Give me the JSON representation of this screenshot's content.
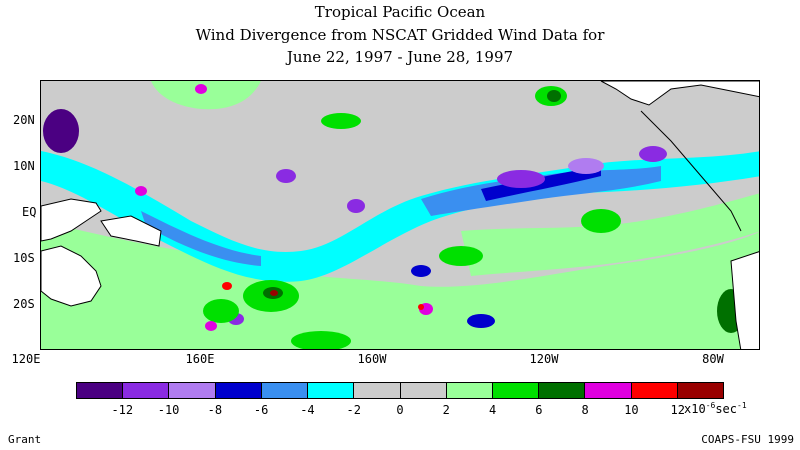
{
  "title": {
    "line1": "Tropical Pacific Ocean",
    "line2": "Wind Divergence from NSCAT Gridded Wind Data for",
    "line3": "June 22, 1997 - June 28, 1997"
  },
  "map": {
    "lat_labels": [
      "20N",
      "10N",
      "EQ",
      "10S",
      "20S"
    ],
    "lon_labels": [
      "120E",
      "160E",
      "160W",
      "120W",
      "80W"
    ]
  },
  "colorbar": {
    "colors": [
      "#4b0082",
      "#8a2be2",
      "#b07cf0",
      "#0000cd",
      "#3a8ff0",
      "#00ffff",
      "#cccccc",
      "#cccccc",
      "#99ff99",
      "#00e000",
      "#007000",
      "#e000e0",
      "#ff0000",
      "#990000"
    ],
    "tick_labels": [
      "-12",
      "-10",
      "-8",
      "-6",
      "-4",
      "-2",
      "0",
      "2",
      "4",
      "6",
      "8",
      "10",
      "12"
    ],
    "units_prefix": "x10",
    "units_exponent": "-6",
    "units_suffix": "sec",
    "units_suffix_exponent": "-1"
  },
  "footer": {
    "left": "Grant",
    "right": "COAPS-FSU 1999"
  }
}
